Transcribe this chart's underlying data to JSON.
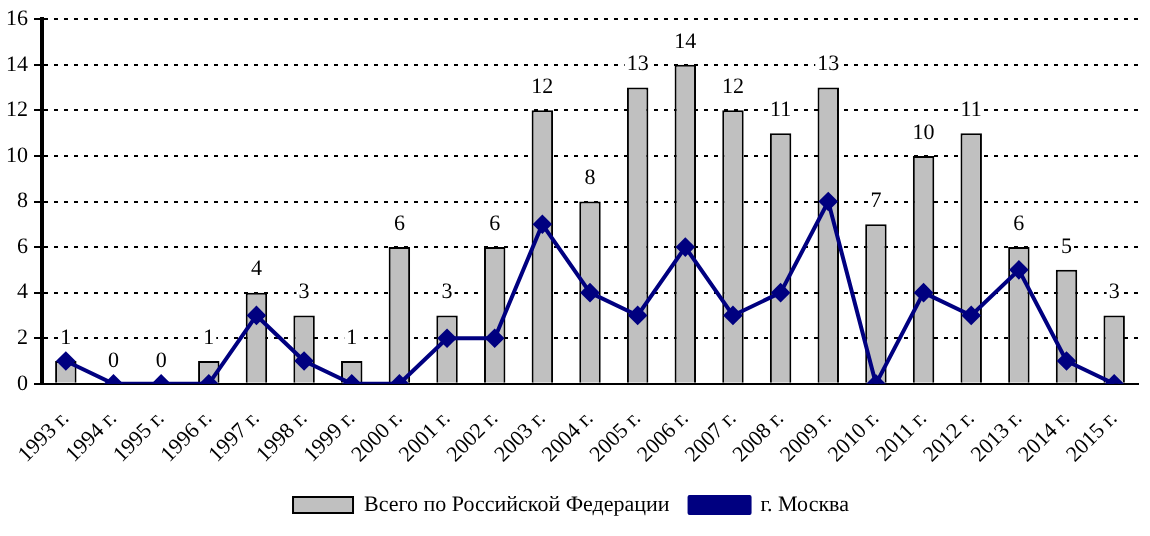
{
  "chart_data": {
    "type": "bar",
    "categories": [
      "1993 г.",
      "1994 г.",
      "1995 г.",
      "1996 г.",
      "1997 г.",
      "1998 г.",
      "1999 г.",
      "2000 г.",
      "2001 г.",
      "2002 г.",
      "2003 г.",
      "2004 г.",
      "2005 г.",
      "2006 г.",
      "2007 г.",
      "2008 г.",
      "2009 г.",
      "2010 г.",
      "2011 г.",
      "2012 г.",
      "2013 г.",
      "2014 г.",
      "2015 г."
    ],
    "series": [
      {
        "name": "Всего по Российской Федерации",
        "color": "#c0c0c0",
        "values": [
          1,
          0,
          0,
          1,
          4,
          3,
          1,
          6,
          3,
          6,
          12,
          8,
          13,
          14,
          12,
          11,
          13,
          7,
          10,
          11,
          6,
          5,
          3
        ],
        "value_labels": [
          "1",
          "0",
          "0",
          "1",
          "4",
          "3",
          "1",
          "6",
          "3",
          "6",
          "12",
          "8",
          "13",
          "14",
          "12",
          "11",
          "13",
          "7",
          "10",
          "11",
          "6",
          "5",
          "3"
        ]
      },
      {
        "name": "г. Москва",
        "type": "line",
        "color": "#000080",
        "values": [
          1,
          0,
          0,
          0,
          3,
          1,
          0,
          0,
          2,
          2,
          7,
          4,
          3,
          6,
          3,
          4,
          8,
          0,
          4,
          3,
          5,
          1,
          0
        ]
      }
    ],
    "ylim": [
      0,
      16
    ],
    "yticks": [
      0,
      2,
      4,
      6,
      8,
      10,
      12,
      14,
      16
    ],
    "grid": "y",
    "legend": "bottom",
    "marker": "diamond",
    "line_style": "solid"
  }
}
